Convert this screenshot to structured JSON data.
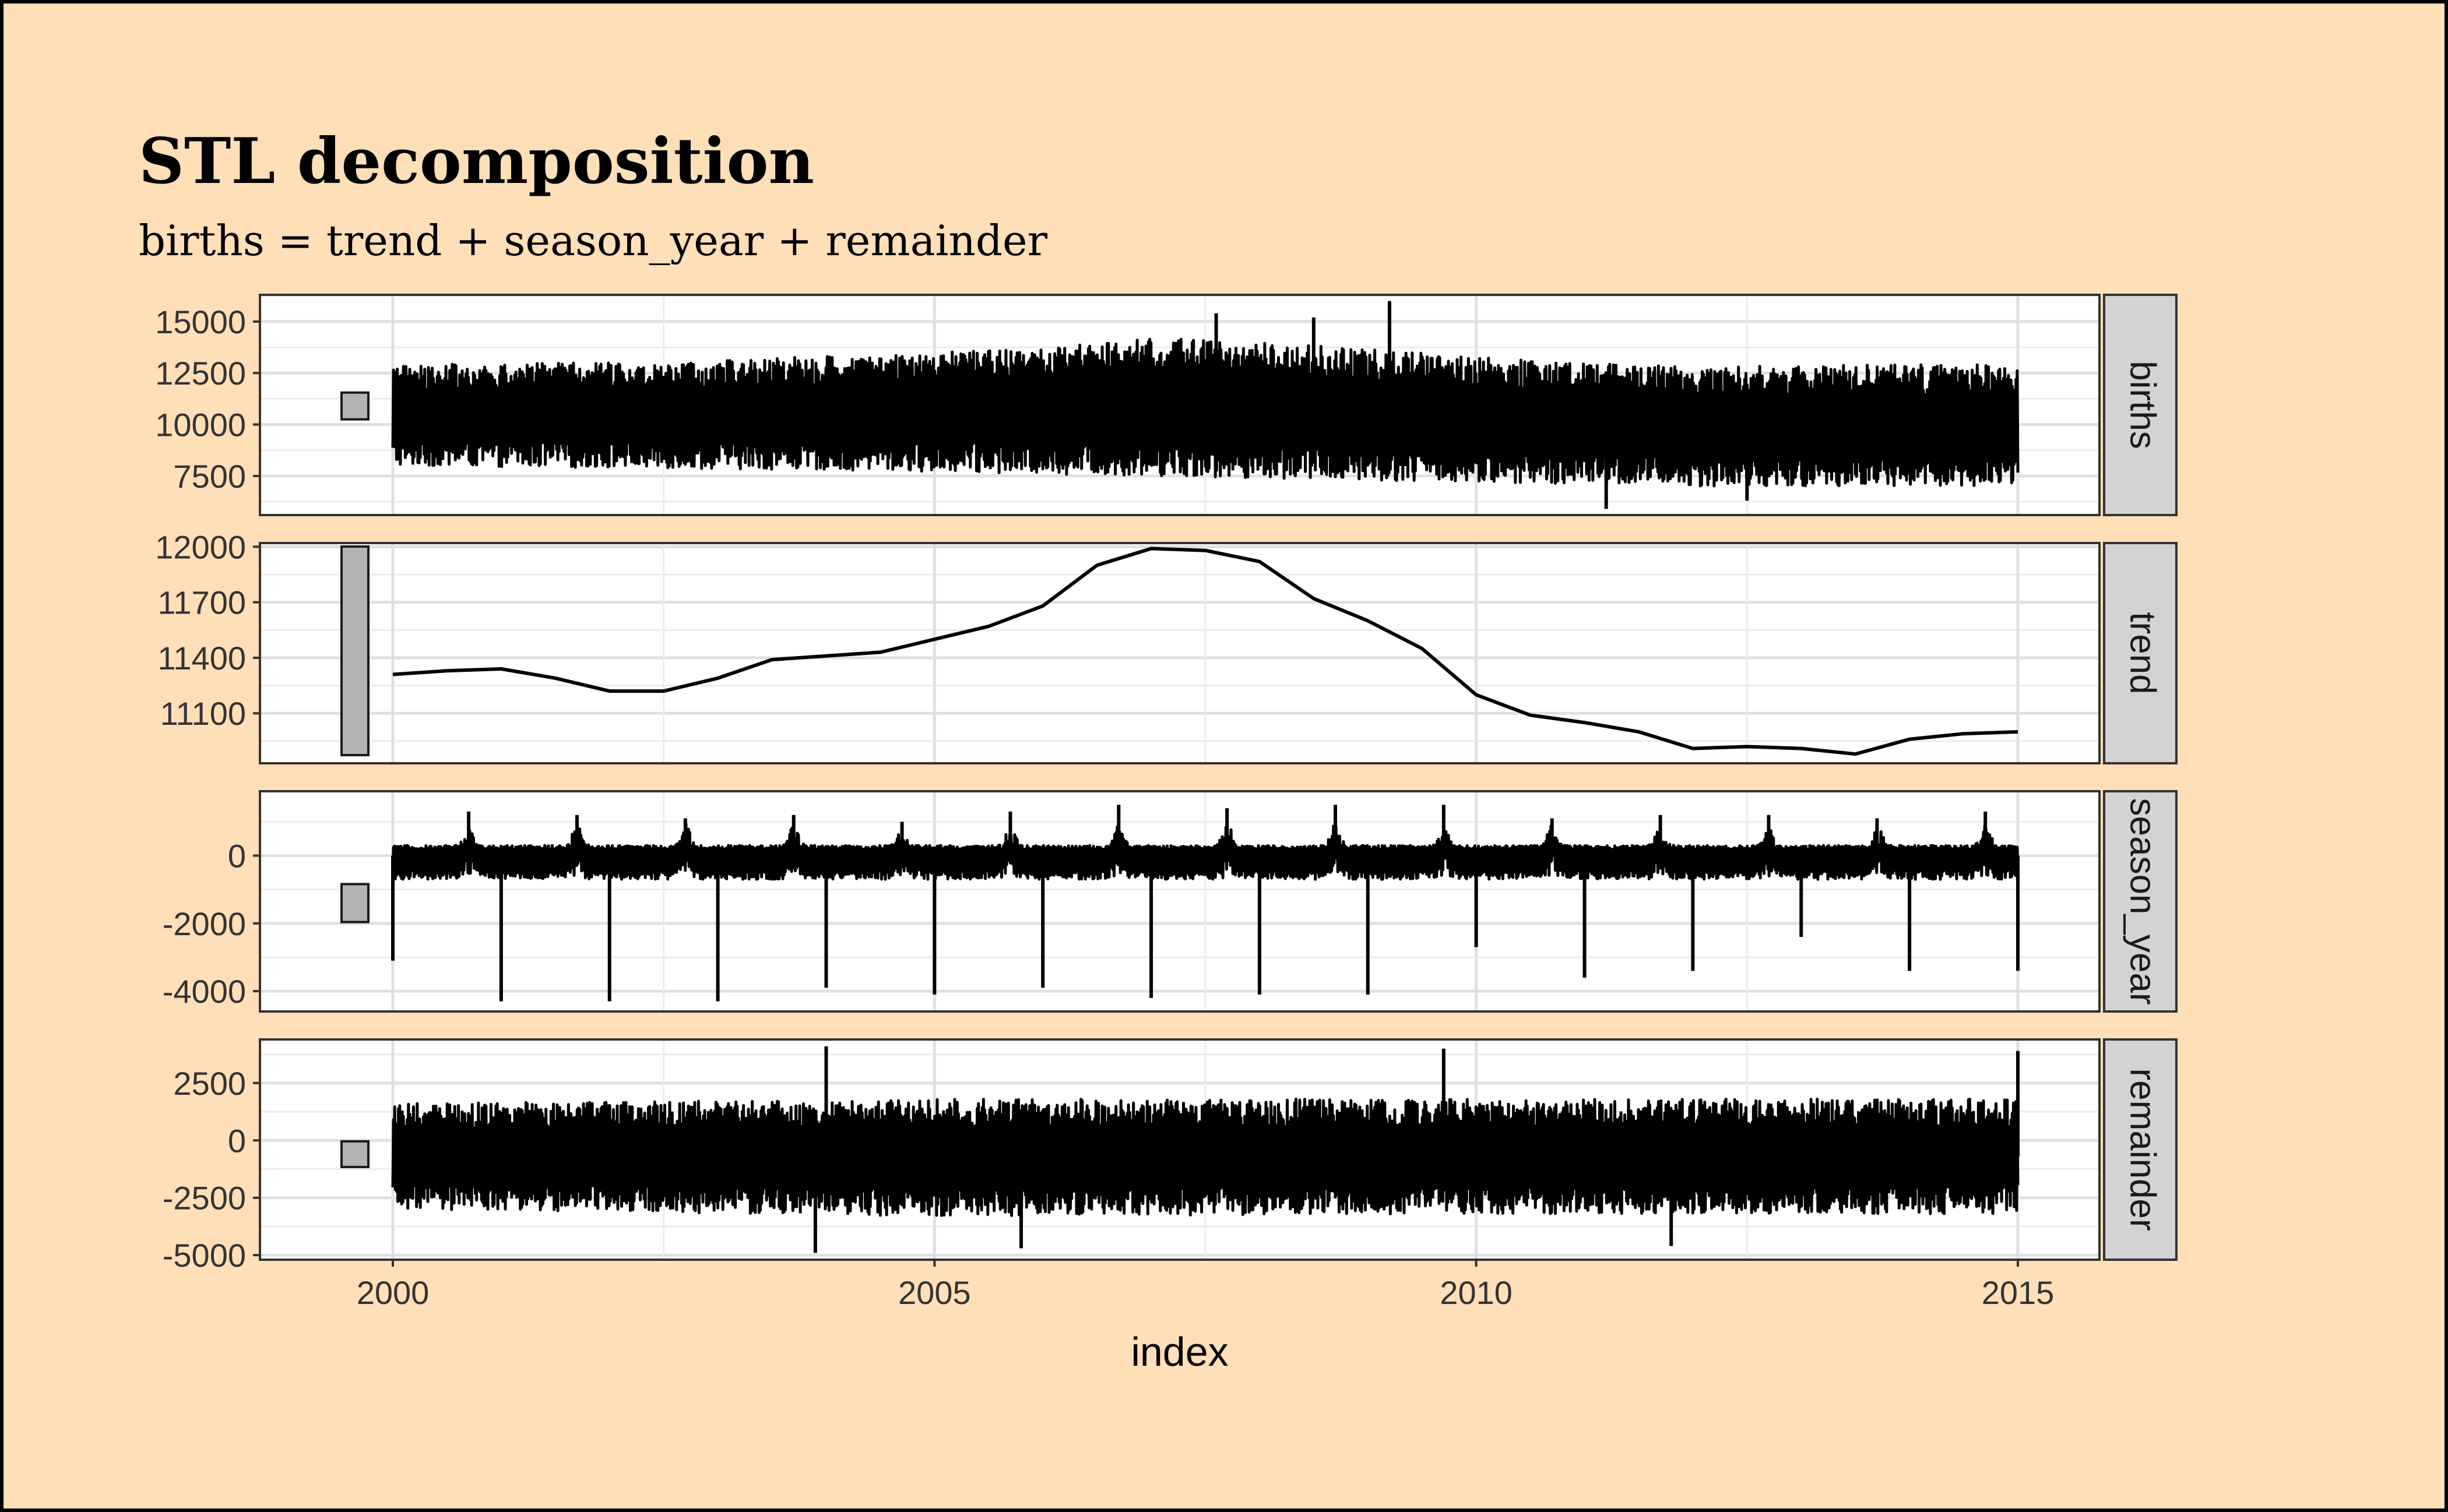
{
  "chart_data": {
    "type": "line",
    "title": "STL decomposition",
    "subtitle": "births = trend + season_year + remainder",
    "xlabel": "index",
    "x_ticks": [
      "2000",
      "2005",
      "2010",
      "2015"
    ],
    "x_range": [
      1999.8,
      2016.0
    ],
    "grid": true,
    "panels": [
      {
        "name": "births",
        "y_ticks": [
          7500,
          10000,
          12500,
          15000
        ],
        "ylim": [
          5600,
          16300
        ],
        "scale_bar_range": 1300,
        "envelope": [
          {
            "x": 2000.0,
            "upper": 12900,
            "lower": 8000
          },
          {
            "x": 2002.0,
            "upper": 13000,
            "lower": 7900
          },
          {
            "x": 2004.0,
            "upper": 13300,
            "lower": 7800
          },
          {
            "x": 2006.0,
            "upper": 13700,
            "lower": 7600
          },
          {
            "x": 2007.0,
            "upper": 14200,
            "lower": 7500
          },
          {
            "x": 2008.0,
            "upper": 14000,
            "lower": 7400
          },
          {
            "x": 2010.0,
            "upper": 13300,
            "lower": 7200
          },
          {
            "x": 2012.0,
            "upper": 12800,
            "lower": 7000
          },
          {
            "x": 2014.0,
            "upper": 12900,
            "lower": 7000
          },
          {
            "x": 2015.0,
            "upper": 12900,
            "lower": 7000
          }
        ],
        "spikes": [
          {
            "x": 2009.2,
            "y": 16000
          },
          {
            "x": 2007.6,
            "y": 15400
          },
          {
            "x": 2008.5,
            "y": 15200
          },
          {
            "x": 2011.2,
            "y": 5900
          },
          {
            "x": 2012.5,
            "y": 6300
          }
        ]
      },
      {
        "name": "trend",
        "y_ticks": [
          11100,
          11400,
          11700,
          12000
        ],
        "ylim": [
          10830,
          12020
        ],
        "scale_bar_range": 1120,
        "points": [
          {
            "x": 2000.0,
            "y": 11310
          },
          {
            "x": 2000.5,
            "y": 11330
          },
          {
            "x": 2001.0,
            "y": 11340
          },
          {
            "x": 2001.5,
            "y": 11290
          },
          {
            "x": 2002.0,
            "y": 11220
          },
          {
            "x": 2002.5,
            "y": 11220
          },
          {
            "x": 2003.0,
            "y": 11290
          },
          {
            "x": 2003.5,
            "y": 11390
          },
          {
            "x": 2004.0,
            "y": 11410
          },
          {
            "x": 2004.5,
            "y": 11430
          },
          {
            "x": 2005.0,
            "y": 11500
          },
          {
            "x": 2005.5,
            "y": 11570
          },
          {
            "x": 2006.0,
            "y": 11680
          },
          {
            "x": 2006.5,
            "y": 11900
          },
          {
            "x": 2007.0,
            "y": 11990
          },
          {
            "x": 2007.5,
            "y": 11980
          },
          {
            "x": 2008.0,
            "y": 11920
          },
          {
            "x": 2008.5,
            "y": 11720
          },
          {
            "x": 2009.0,
            "y": 11600
          },
          {
            "x": 2009.5,
            "y": 11450
          },
          {
            "x": 2010.0,
            "y": 11200
          },
          {
            "x": 2010.5,
            "y": 11090
          },
          {
            "x": 2011.0,
            "y": 11050
          },
          {
            "x": 2011.5,
            "y": 11000
          },
          {
            "x": 2012.0,
            "y": 10910
          },
          {
            "x": 2012.5,
            "y": 10920
          },
          {
            "x": 2013.0,
            "y": 10910
          },
          {
            "x": 2013.5,
            "y": 10880
          },
          {
            "x": 2014.0,
            "y": 10960
          },
          {
            "x": 2014.5,
            "y": 10990
          },
          {
            "x": 2015.0,
            "y": 11000
          }
        ]
      },
      {
        "name": "season_year",
        "y_ticks": [
          -4000,
          -2000,
          0
        ],
        "ylim": [
          -4600,
          1900
        ],
        "scale_bar_range": 1120,
        "envelope": [
          {
            "x": 2000.0,
            "upper": 300,
            "lower": -700
          },
          {
            "x": 2015.0,
            "upper": 300,
            "lower": -700
          }
        ],
        "peaks": [
          {
            "x": 2000.7,
            "y": 1300
          },
          {
            "x": 2001.7,
            "y": 1200
          },
          {
            "x": 2002.7,
            "y": 1100
          },
          {
            "x": 2003.7,
            "y": 1200
          },
          {
            "x": 2004.7,
            "y": 1000
          },
          {
            "x": 2005.7,
            "y": 1300
          },
          {
            "x": 2006.7,
            "y": 1500
          },
          {
            "x": 2007.7,
            "y": 1400
          },
          {
            "x": 2008.7,
            "y": 1500
          },
          {
            "x": 2009.7,
            "y": 1500
          },
          {
            "x": 2010.7,
            "y": 1100
          },
          {
            "x": 2011.7,
            "y": 1200
          },
          {
            "x": 2012.7,
            "y": 1200
          },
          {
            "x": 2013.7,
            "y": 1100
          },
          {
            "x": 2014.7,
            "y": 1300
          }
        ],
        "dips": [
          {
            "x": 2000.0,
            "y": -3100
          },
          {
            "x": 2001.0,
            "y": -4300
          },
          {
            "x": 2002.0,
            "y": -4300
          },
          {
            "x": 2003.0,
            "y": -4300
          },
          {
            "x": 2004.0,
            "y": -3900
          },
          {
            "x": 2005.0,
            "y": -4100
          },
          {
            "x": 2006.0,
            "y": -3900
          },
          {
            "x": 2007.0,
            "y": -4200
          },
          {
            "x": 2008.0,
            "y": -4100
          },
          {
            "x": 2009.0,
            "y": -4100
          },
          {
            "x": 2010.0,
            "y": -2700
          },
          {
            "x": 2011.0,
            "y": -3600
          },
          {
            "x": 2012.0,
            "y": -3400
          },
          {
            "x": 2013.0,
            "y": -2400
          },
          {
            "x": 2014.0,
            "y": -3400
          },
          {
            "x": 2015.0,
            "y": -3400
          }
        ]
      },
      {
        "name": "remainder",
        "y_ticks": [
          -5000,
          -2500,
          0,
          2500
        ],
        "ylim": [
          -5200,
          4400
        ],
        "scale_bar_range": 1120,
        "envelope": [
          {
            "x": 2000.0,
            "upper": 1600,
            "lower": -3000
          },
          {
            "x": 2005.0,
            "upper": 1800,
            "lower": -3300
          },
          {
            "x": 2010.0,
            "upper": 1800,
            "lower": -3200
          },
          {
            "x": 2015.0,
            "upper": 1800,
            "lower": -3200
          }
        ],
        "spikes": [
          {
            "x": 2004.0,
            "y": 4100
          },
          {
            "x": 2005.8,
            "y": -4700
          },
          {
            "x": 2009.7,
            "y": 4000
          },
          {
            "x": 2015.0,
            "y": 3900
          },
          {
            "x": 2003.9,
            "y": -4900
          },
          {
            "x": 2011.8,
            "y": -4600
          }
        ]
      }
    ]
  }
}
